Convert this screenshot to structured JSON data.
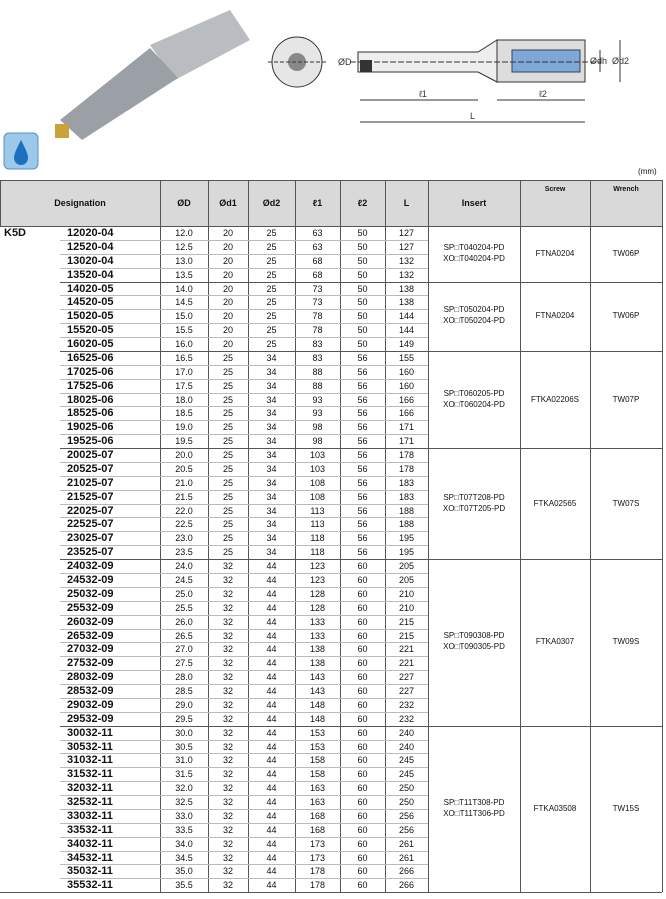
{
  "drawing": {
    "labels": {
      "D": "ØD",
      "dh": "Ødh",
      "d2": "Ød2",
      "l1": "ℓ1",
      "l2": "ℓ2",
      "L": "L"
    }
  },
  "unit": "(mm)",
  "table": {
    "header": [
      "Designation",
      "ØD",
      "Ød1",
      "Ød2",
      "ℓ1",
      "ℓ2",
      "L",
      "Insert",
      "Screw",
      "Wrench"
    ],
    "family": "K5D",
    "groups": [
      {
        "insert": [
          "SP□T040204-PD",
          "XO□T040204-PD"
        ],
        "screw": "FTNA0204",
        "wrench": "TW06P",
        "rows": [
          [
            "12020-04",
            "12.0",
            "20",
            "25",
            "63",
            "50",
            "127"
          ],
          [
            "12520-04",
            "12.5",
            "20",
            "25",
            "63",
            "50",
            "127"
          ],
          [
            "13020-04",
            "13.0",
            "20",
            "25",
            "68",
            "50",
            "132"
          ],
          [
            "13520-04",
            "13.5",
            "20",
            "25",
            "68",
            "50",
            "132"
          ]
        ]
      },
      {
        "insert": [
          "SP□T050204-PD",
          "XO□T050204-PD"
        ],
        "screw": "FTNA0204",
        "wrench": "TW06P",
        "rows": [
          [
            "14020-05",
            "14.0",
            "20",
            "25",
            "73",
            "50",
            "138"
          ],
          [
            "14520-05",
            "14.5",
            "20",
            "25",
            "73",
            "50",
            "138"
          ],
          [
            "15020-05",
            "15.0",
            "20",
            "25",
            "78",
            "50",
            "144"
          ],
          [
            "15520-05",
            "15.5",
            "20",
            "25",
            "78",
            "50",
            "144"
          ],
          [
            "16020-05",
            "16.0",
            "20",
            "25",
            "83",
            "50",
            "149"
          ]
        ]
      },
      {
        "insert": [
          "SP□T060205-PD",
          "XO□T060204-PD"
        ],
        "screw": "FTKA02206S",
        "wrench": "TW07P",
        "rows": [
          [
            "16525-06",
            "16.5",
            "25",
            "34",
            "83",
            "56",
            "155"
          ],
          [
            "17025-06",
            "17.0",
            "25",
            "34",
            "88",
            "56",
            "160"
          ],
          [
            "17525-06",
            "17.5",
            "25",
            "34",
            "88",
            "56",
            "160"
          ],
          [
            "18025-06",
            "18.0",
            "25",
            "34",
            "93",
            "56",
            "166"
          ],
          [
            "18525-06",
            "18.5",
            "25",
            "34",
            "93",
            "56",
            "166"
          ],
          [
            "19025-06",
            "19.0",
            "25",
            "34",
            "98",
            "56",
            "171"
          ],
          [
            "19525-06",
            "19.5",
            "25",
            "34",
            "98",
            "56",
            "171"
          ]
        ]
      },
      {
        "insert": [
          "SP□T07T208-PD",
          "XO□T07T205-PD"
        ],
        "screw": "FTKA02565",
        "wrench": "TW07S",
        "rows": [
          [
            "20025-07",
            "20.0",
            "25",
            "34",
            "103",
            "56",
            "178"
          ],
          [
            "20525-07",
            "20.5",
            "25",
            "34",
            "103",
            "56",
            "178"
          ],
          [
            "21025-07",
            "21.0",
            "25",
            "34",
            "108",
            "56",
            "183"
          ],
          [
            "21525-07",
            "21.5",
            "25",
            "34",
            "108",
            "56",
            "183"
          ],
          [
            "22025-07",
            "22.0",
            "25",
            "34",
            "113",
            "56",
            "188"
          ],
          [
            "22525-07",
            "22.5",
            "25",
            "34",
            "113",
            "56",
            "188"
          ],
          [
            "23025-07",
            "23.0",
            "25",
            "34",
            "118",
            "56",
            "195"
          ],
          [
            "23525-07",
            "23.5",
            "25",
            "34",
            "118",
            "56",
            "195"
          ]
        ]
      },
      {
        "insert": [
          "SP□T090308-PD",
          "XO□T090305-PD"
        ],
        "screw": "FTKA0307",
        "wrench": "TW09S",
        "rows": [
          [
            "24032-09",
            "24.0",
            "32",
            "44",
            "123",
            "60",
            "205"
          ],
          [
            "24532-09",
            "24.5",
            "32",
            "44",
            "123",
            "60",
            "205"
          ],
          [
            "25032-09",
            "25.0",
            "32",
            "44",
            "128",
            "60",
            "210"
          ],
          [
            "25532-09",
            "25.5",
            "32",
            "44",
            "128",
            "60",
            "210"
          ],
          [
            "26032-09",
            "26.0",
            "32",
            "44",
            "133",
            "60",
            "215"
          ],
          [
            "26532-09",
            "26.5",
            "32",
            "44",
            "133",
            "60",
            "215"
          ],
          [
            "27032-09",
            "27.0",
            "32",
            "44",
            "138",
            "60",
            "221"
          ],
          [
            "27532-09",
            "27.5",
            "32",
            "44",
            "138",
            "60",
            "221"
          ],
          [
            "28032-09",
            "28.0",
            "32",
            "44",
            "143",
            "60",
            "227"
          ],
          [
            "28532-09",
            "28.5",
            "32",
            "44",
            "143",
            "60",
            "227"
          ],
          [
            "29032-09",
            "29.0",
            "32",
            "44",
            "148",
            "60",
            "232"
          ],
          [
            "29532-09",
            "29.5",
            "32",
            "44",
            "148",
            "60",
            "232"
          ]
        ]
      },
      {
        "insert": [
          "SP□T11T308-PD",
          "XO□T11T306-PD"
        ],
        "screw": "FTKA03508",
        "wrench": "TW15S",
        "rows": [
          [
            "30032-11",
            "30.0",
            "32",
            "44",
            "153",
            "60",
            "240"
          ],
          [
            "30532-11",
            "30.5",
            "32",
            "44",
            "153",
            "60",
            "240"
          ],
          [
            "31032-11",
            "31.0",
            "32",
            "44",
            "158",
            "60",
            "245"
          ],
          [
            "31532-11",
            "31.5",
            "32",
            "44",
            "158",
            "60",
            "245"
          ],
          [
            "32032-11",
            "32.0",
            "32",
            "44",
            "163",
            "60",
            "250"
          ],
          [
            "32532-11",
            "32.5",
            "32",
            "44",
            "163",
            "60",
            "250"
          ],
          [
            "33032-11",
            "33.0",
            "32",
            "44",
            "168",
            "60",
            "256"
          ],
          [
            "33532-11",
            "33.5",
            "32",
            "44",
            "168",
            "60",
            "256"
          ],
          [
            "34032-11",
            "34.0",
            "32",
            "44",
            "173",
            "60",
            "261"
          ],
          [
            "34532-11",
            "34.5",
            "32",
            "44",
            "173",
            "60",
            "261"
          ],
          [
            "35032-11",
            "35.0",
            "32",
            "44",
            "178",
            "60",
            "266"
          ],
          [
            "35532-11",
            "35.5",
            "32",
            "44",
            "178",
            "60",
            "266"
          ]
        ]
      }
    ]
  }
}
